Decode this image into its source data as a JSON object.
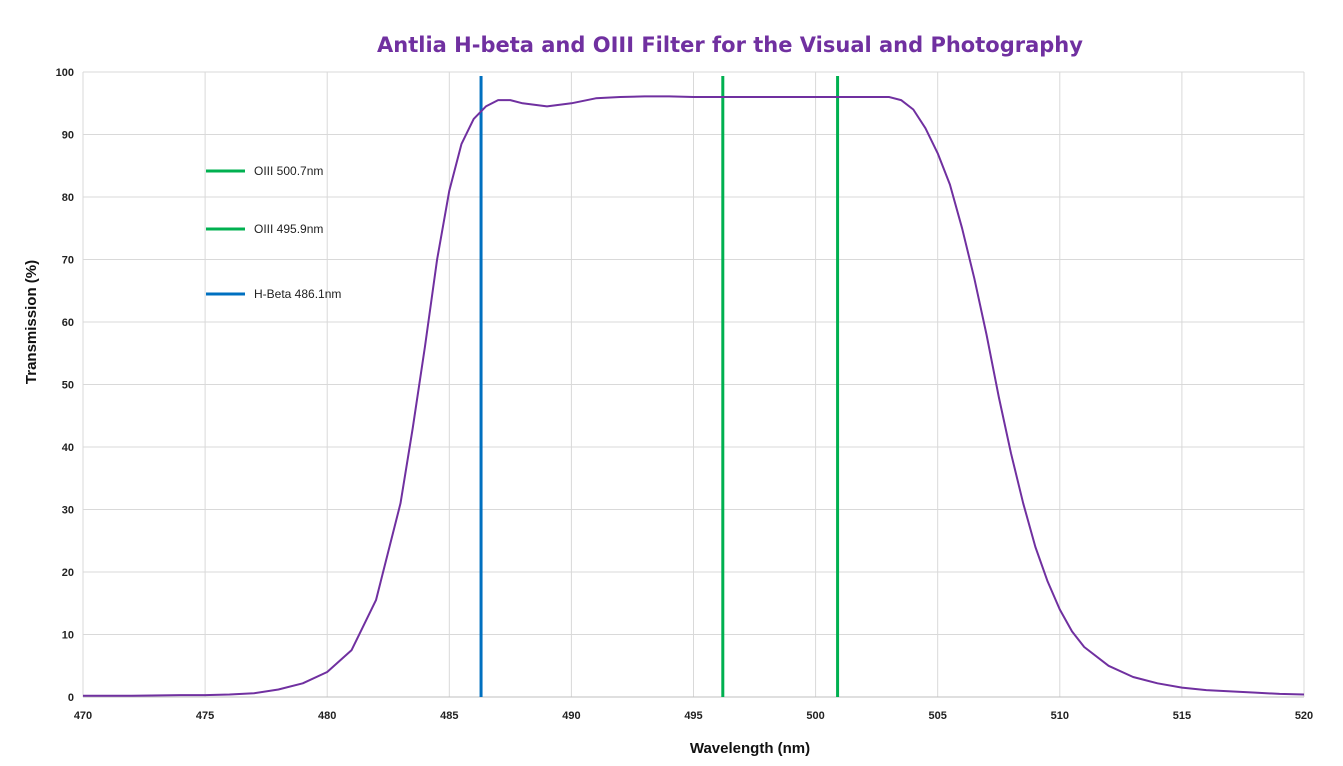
{
  "chart_data": {
    "type": "line",
    "title": "Antlia H-beta and OIII Filter for the Visual and Photography",
    "xlabel": "Wavelength  (nm)",
    "ylabel": "Transmission  (%)",
    "xlim": [
      470,
      520
    ],
    "ylim": [
      0,
      100
    ],
    "x_ticks": [
      470,
      475,
      480,
      485,
      490,
      495,
      500,
      505,
      510,
      515,
      520
    ],
    "y_ticks": [
      0,
      10,
      20,
      30,
      40,
      50,
      60,
      70,
      80,
      90,
      100
    ],
    "grid": true,
    "legend_position": "top-left",
    "colors": {
      "curve": "#7030a0",
      "oiii": "#00b050",
      "hbeta": "#0070c0",
      "title": "#7030a0",
      "grid": "#d9d9d9"
    },
    "series": [
      {
        "color": "#7030a0",
        "x": [
          470,
          472,
          474,
          475,
          476,
          477,
          478,
          479,
          480,
          481,
          482,
          483,
          483.5,
          484,
          484.5,
          485,
          485.5,
          486,
          486.5,
          487,
          487.5,
          488,
          489,
          490,
          491,
          492,
          493,
          494,
          495,
          496,
          497,
          498,
          499,
          500,
          501,
          502,
          503,
          503.5,
          504,
          504.5,
          505,
          505.5,
          506,
          506.5,
          507,
          507.5,
          508,
          508.5,
          509,
          509.5,
          510,
          510.5,
          511,
          512,
          513,
          514,
          515,
          516,
          517,
          518,
          519,
          520
        ],
        "y": [
          0.2,
          0.2,
          0.3,
          0.3,
          0.4,
          0.6,
          1.2,
          2.2,
          4.0,
          7.5,
          15.5,
          31.0,
          43.0,
          56.0,
          70.0,
          81.0,
          88.5,
          92.5,
          94.5,
          95.5,
          95.5,
          95.0,
          94.5,
          95.0,
          95.8,
          96.0,
          96.1,
          96.1,
          96.0,
          96.0,
          96.0,
          96.0,
          96.0,
          96.0,
          96.0,
          96.0,
          96.0,
          95.5,
          94.0,
          91.0,
          87.0,
          82.0,
          75.0,
          67.0,
          58.0,
          48.0,
          39.0,
          31.0,
          24.0,
          18.5,
          14.0,
          10.5,
          8.0,
          5.0,
          3.2,
          2.2,
          1.5,
          1.1,
          0.9,
          0.7,
          0.5,
          0.4
        ]
      }
    ],
    "vertical_lines": [
      {
        "name": "H-Beta 486.1nm",
        "x": 486.3,
        "color": "#0070c0"
      },
      {
        "name": "OIII 495.9nm",
        "x": 496.2,
        "color": "#00b050"
      },
      {
        "name": "OIII 500.7nm",
        "x": 500.9,
        "color": "#00b050"
      }
    ],
    "legend": [
      {
        "label": "OIII 500.7nm",
        "color": "#00b050"
      },
      {
        "label": "OIII 495.9nm",
        "color": "#00b050"
      },
      {
        "label": "H-Beta 486.1nm",
        "color": "#0070c0"
      }
    ]
  }
}
